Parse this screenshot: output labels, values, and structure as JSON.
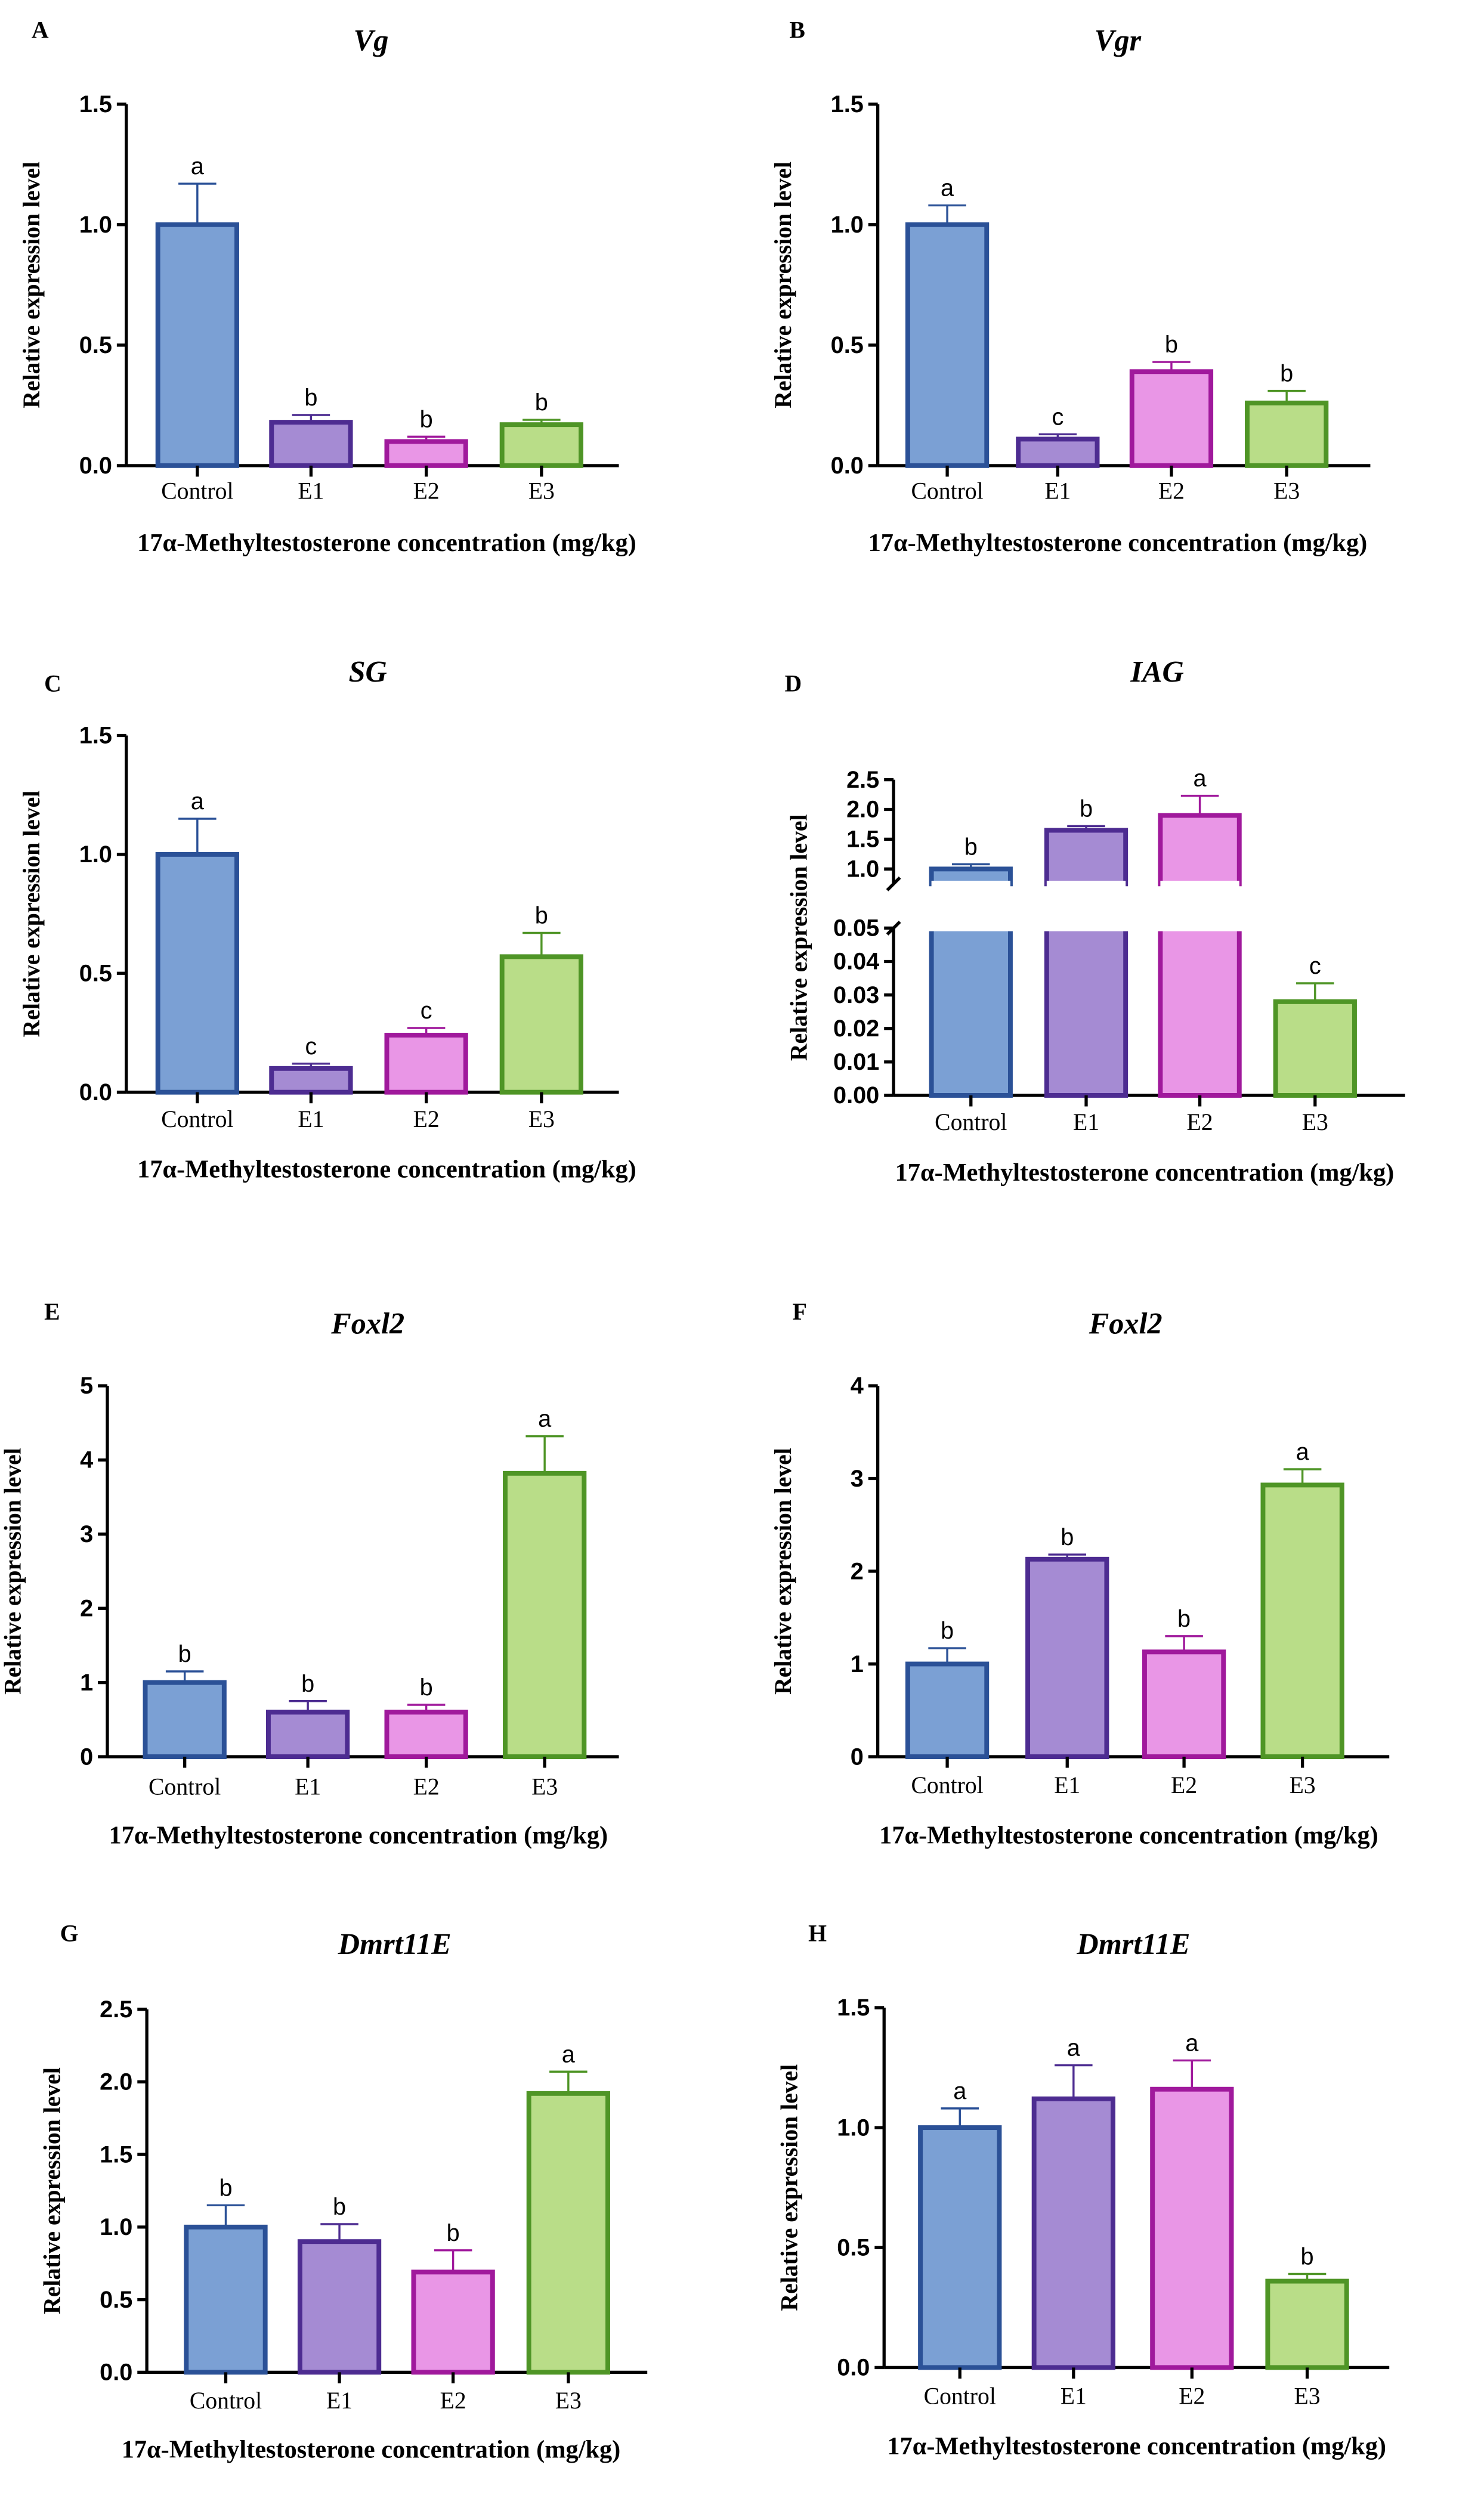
{
  "colors": {
    "fills": [
      "#7ba0d4",
      "#a58bd3",
      "#e996e6",
      "#b9dd88"
    ],
    "strokes": [
      "#2b5197",
      "#4d2c91",
      "#a0199c",
      "#4f9526"
    ]
  },
  "chart_data": [
    {
      "type": "bar",
      "panel": "A",
      "title": "Vg",
      "categories": [
        "Control",
        "E1",
        "E2",
        "E3"
      ],
      "values": [
        1.0,
        0.18,
        0.1,
        0.17
      ],
      "errors": [
        0.17,
        0.03,
        0.02,
        0.02
      ],
      "letters": [
        "a",
        "b",
        "b",
        "b"
      ],
      "ylim": [
        0,
        1.5
      ],
      "yticks": [
        "0.0",
        "0.5",
        "1.0",
        "1.5"
      ],
      "ylabel": "Relative expression level",
      "xlabel": "17α-Methyltestosterone concentration (mg/kg)"
    },
    {
      "type": "bar",
      "panel": "B",
      "title": "Vgr",
      "categories": [
        "Control",
        "E1",
        "E2",
        "E3"
      ],
      "values": [
        1.0,
        0.11,
        0.39,
        0.26
      ],
      "errors": [
        0.08,
        0.02,
        0.04,
        0.05
      ],
      "letters": [
        "a",
        "c",
        "b",
        "b"
      ],
      "ylim": [
        0,
        1.5
      ],
      "yticks": [
        "0.0",
        "0.5",
        "1.0",
        "1.5"
      ],
      "ylabel": "Relative expression level",
      "xlabel": "17α-Methyltestosterone concentration (mg/kg)"
    },
    {
      "type": "bar",
      "panel": "C",
      "title": "SG",
      "categories": [
        "Control",
        "E1",
        "E2",
        "E3"
      ],
      "values": [
        1.0,
        0.1,
        0.24,
        0.57
      ],
      "errors": [
        0.15,
        0.02,
        0.03,
        0.1
      ],
      "letters": [
        "a",
        "c",
        "c",
        "b"
      ],
      "ylim": [
        0,
        1.5
      ],
      "yticks": [
        "0.0",
        "0.5",
        "1.0",
        "1.5"
      ],
      "ylabel": "Relative expression level",
      "xlabel": "17α-Methyltestosterone concentration (mg/kg)"
    },
    {
      "type": "bar",
      "panel": "D",
      "title": "IAG",
      "categories": [
        "Control",
        "E1",
        "E2",
        "E3"
      ],
      "values": [
        1.0,
        1.65,
        1.9,
        0.028
      ],
      "errors": [
        0.08,
        0.07,
        0.33,
        0.0055
      ],
      "letters": [
        "b",
        "b",
        "a",
        "c"
      ],
      "ylim": [
        0,
        2.5
      ],
      "axis_break": [
        0.05,
        0.75
      ],
      "yticks_low": [
        "0.00",
        "0.01",
        "0.02",
        "0.03",
        "0.04",
        "0.05"
      ],
      "yticks_high": [
        "1.0",
        "1.5",
        "2.0",
        "2.5"
      ],
      "ylabel": "Relative expression level",
      "xlabel": "17α-Methyltestosterone concentration (mg/kg)"
    },
    {
      "type": "bar",
      "panel": "E",
      "title": "Foxl2",
      "categories": [
        "Control",
        "E1",
        "E2",
        "E3"
      ],
      "values": [
        1.0,
        0.6,
        0.6,
        3.82
      ],
      "errors": [
        0.15,
        0.15,
        0.1,
        0.5
      ],
      "letters": [
        "b",
        "b",
        "b",
        "a"
      ],
      "ylim": [
        0,
        5
      ],
      "yticks": [
        "0",
        "1",
        "2",
        "3",
        "4",
        "5"
      ],
      "ylabel": "Relative expression level",
      "xlabel": "17α-Methyltestosterone concentration (mg/kg)"
    },
    {
      "type": "bar",
      "panel": "F",
      "title": "Foxl2",
      "categories": [
        "Control",
        "E1",
        "E2",
        "E3"
      ],
      "values": [
        1.0,
        2.13,
        1.13,
        2.93
      ],
      "errors": [
        0.17,
        0.05,
        0.17,
        0.17
      ],
      "letters": [
        "b",
        "b",
        "b",
        "a"
      ],
      "ylim": [
        0,
        4
      ],
      "yticks": [
        "0",
        "1",
        "2",
        "3",
        "4"
      ],
      "ylabel": "Relative expression level",
      "xlabel": "17α-Methyltestosterone concentration (mg/kg)"
    },
    {
      "type": "bar",
      "panel": "G",
      "title": "Dmrt11E",
      "categories": [
        "Control",
        "E1",
        "E2",
        "E3"
      ],
      "values": [
        1.0,
        0.9,
        0.69,
        1.92
      ],
      "errors": [
        0.15,
        0.12,
        0.15,
        0.15
      ],
      "letters": [
        "b",
        "b",
        "b",
        "a"
      ],
      "ylim": [
        0,
        2.5
      ],
      "yticks": [
        "0.0",
        "0.5",
        "1.0",
        "1.5",
        "2.0",
        "2.5"
      ],
      "ylabel": "Relative expression level",
      "xlabel": "17α-Methyltestosterone concentration (mg/kg)"
    },
    {
      "type": "bar",
      "panel": "H",
      "title": "Dmrt11E",
      "categories": [
        "Control",
        "E1",
        "E2",
        "E3"
      ],
      "values": [
        1.0,
        1.12,
        1.16,
        0.36
      ],
      "errors": [
        0.08,
        0.14,
        0.12,
        0.03
      ],
      "letters": [
        "a",
        "a",
        "a",
        "b"
      ],
      "ylim": [
        0,
        1.5
      ],
      "yticks": [
        "0.0",
        "0.5",
        "1.0",
        "1.5"
      ],
      "ylabel": "Relative expression level",
      "xlabel": "17α-Methyltestosterone concentration (mg/kg)"
    }
  ]
}
